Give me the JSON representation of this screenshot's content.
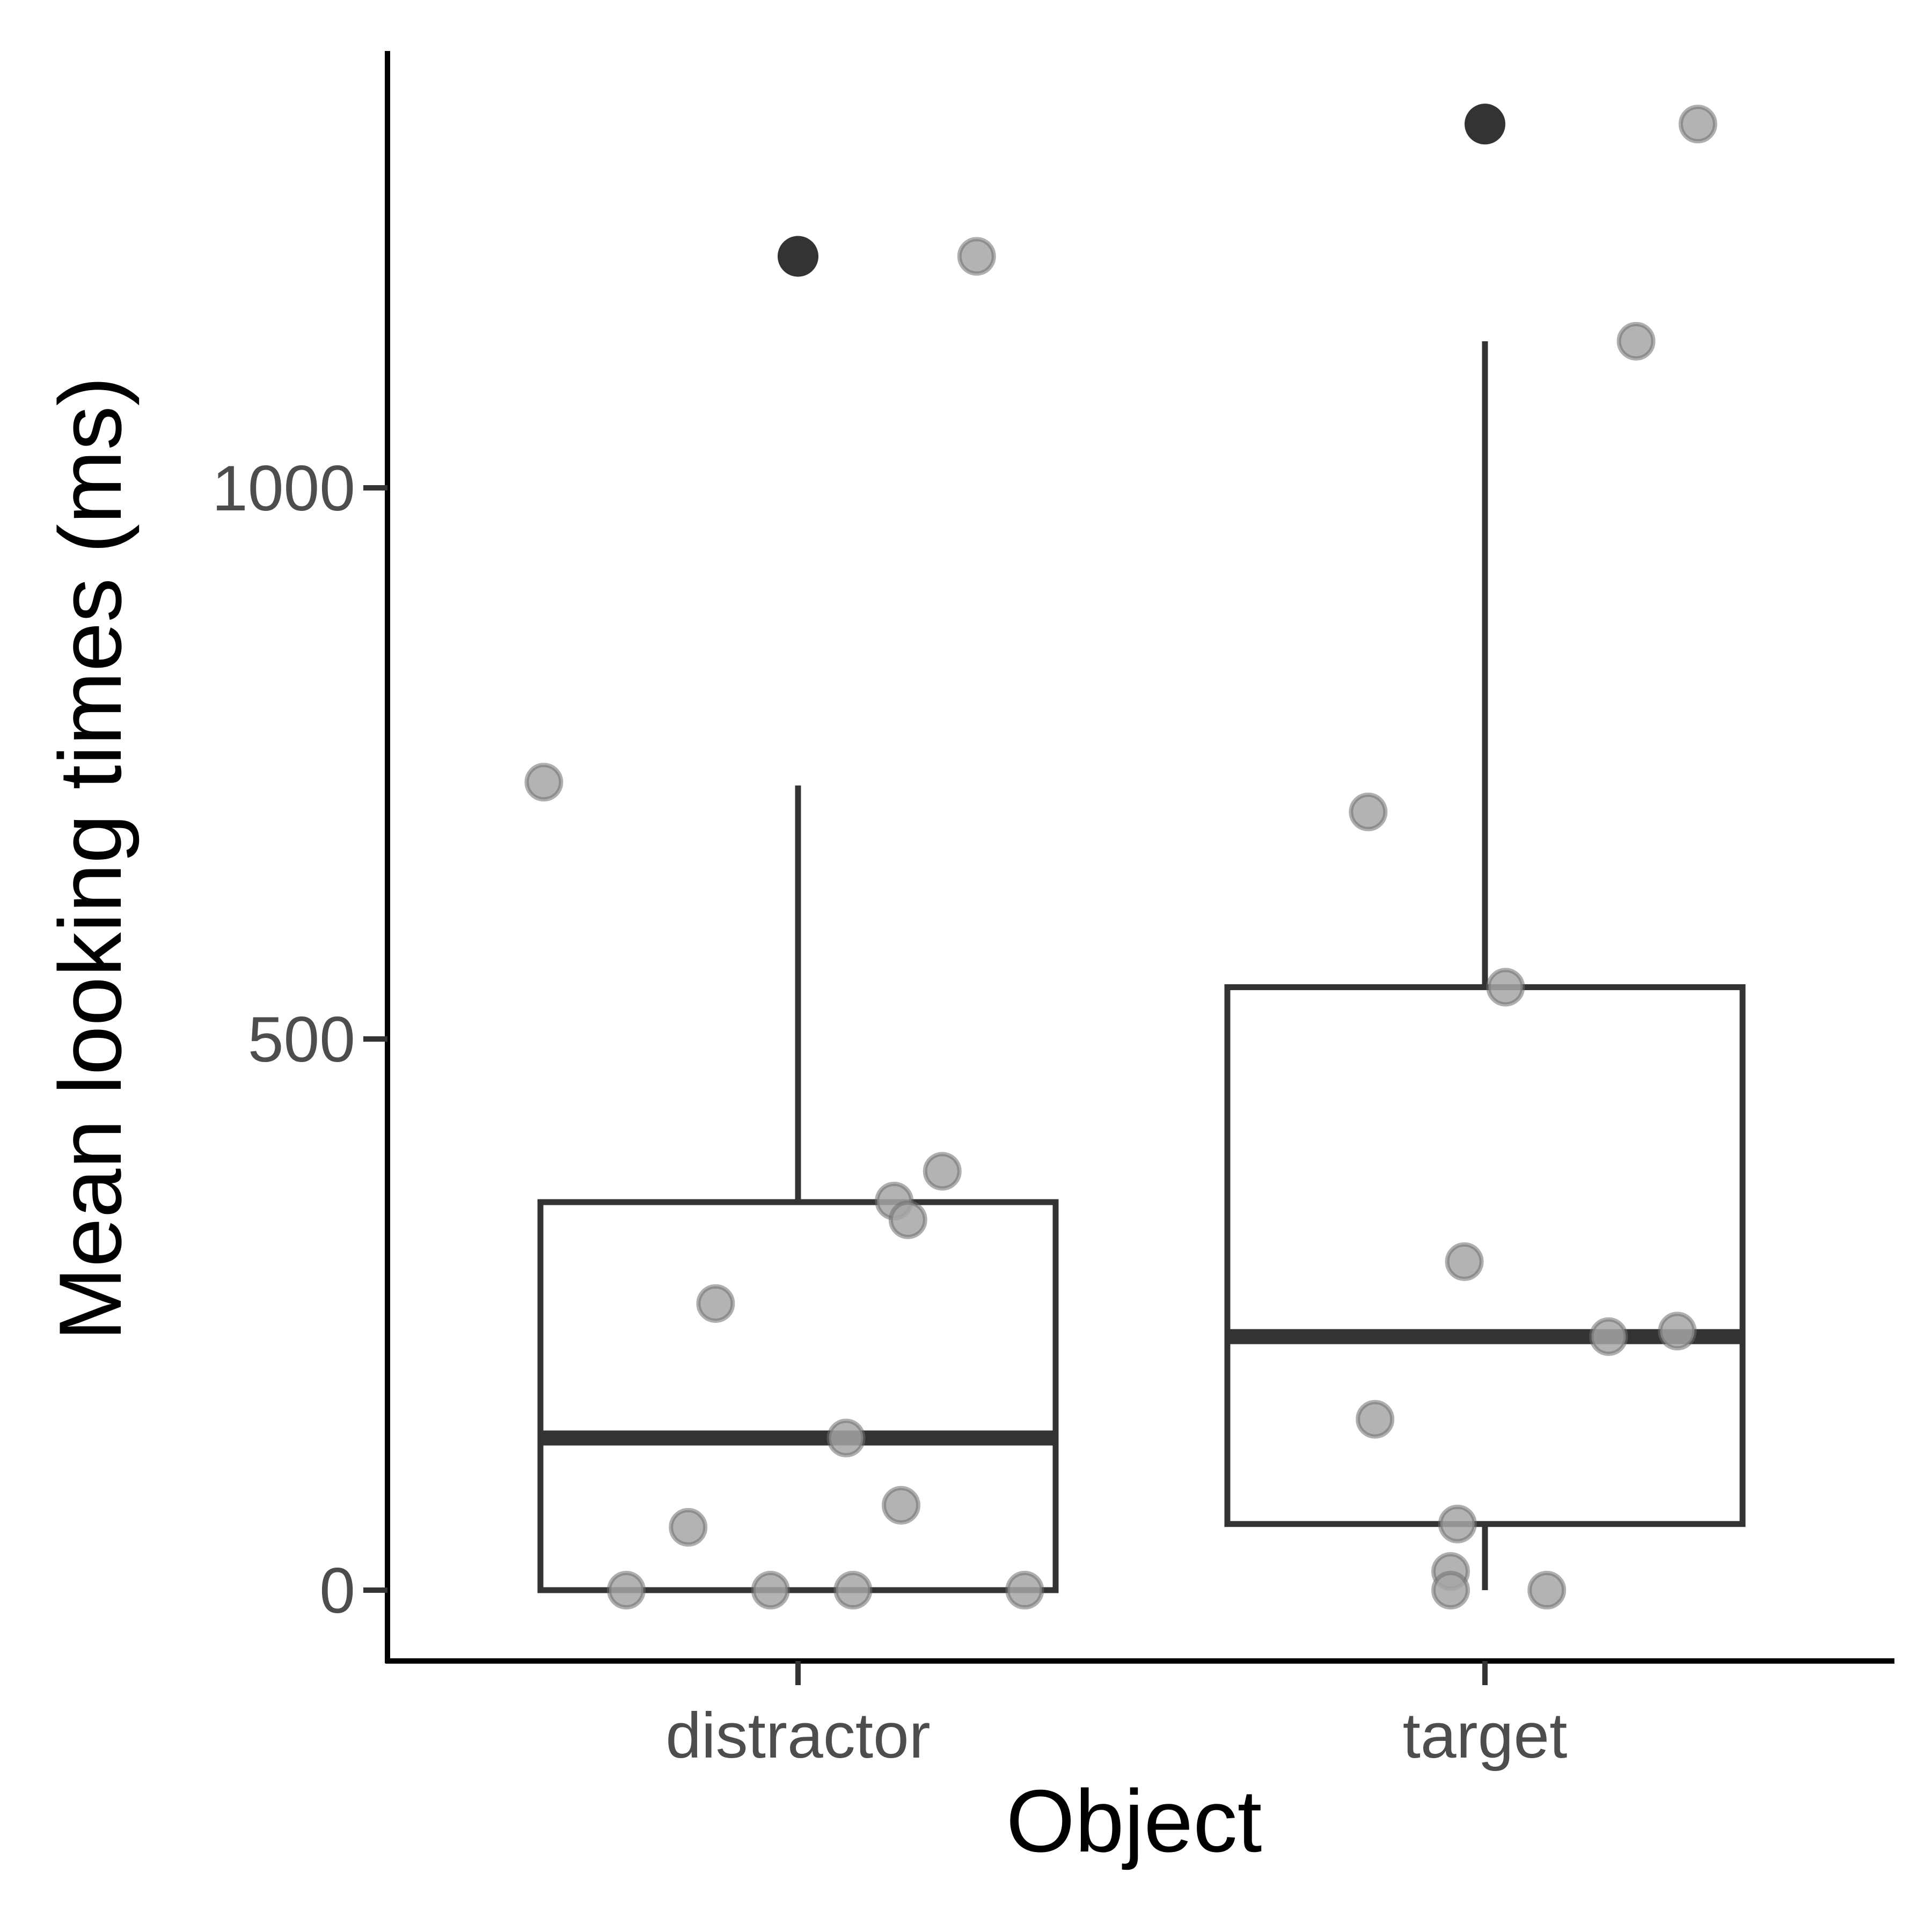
{
  "chart_data": {
    "type": "box",
    "title": "",
    "xlabel": "Object",
    "ylabel": "Mean looking times (ms)",
    "categories": [
      "distractor",
      "target"
    ],
    "ylim": [
      -65,
      1400
    ],
    "yticks": [
      0,
      500,
      1000
    ],
    "grid": false,
    "legend": "none",
    "boxes": [
      {
        "category": "distractor",
        "lower_whisker": 0,
        "q1": 0,
        "median": 138,
        "q3": 352,
        "upper_whisker": 730,
        "outliers": [
          1210
        ]
      },
      {
        "category": "target",
        "lower_whisker": 0,
        "q1": 60,
        "median": 230,
        "q3": 547,
        "upper_whisker": 1133,
        "outliers": [
          1330
        ]
      }
    ],
    "points": [
      {
        "category": "distractor",
        "offset": -0.37,
        "value": 733
      },
      {
        "category": "distractor",
        "offset": 0.26,
        "value": 1210
      },
      {
        "category": "distractor",
        "offset": 0.21,
        "value": 380
      },
      {
        "category": "distractor",
        "offset": 0.14,
        "value": 353
      },
      {
        "category": "distractor",
        "offset": 0.16,
        "value": 336
      },
      {
        "category": "distractor",
        "offset": -0.12,
        "value": 260
      },
      {
        "category": "distractor",
        "offset": 0.07,
        "value": 138
      },
      {
        "category": "distractor",
        "offset": 0.15,
        "value": 77
      },
      {
        "category": "distractor",
        "offset": -0.16,
        "value": 57
      },
      {
        "category": "distractor",
        "offset": -0.25,
        "value": 0
      },
      {
        "category": "distractor",
        "offset": -0.04,
        "value": 0
      },
      {
        "category": "distractor",
        "offset": 0.08,
        "value": 0
      },
      {
        "category": "distractor",
        "offset": 0.33,
        "value": 0
      },
      {
        "category": "target",
        "offset": 0.31,
        "value": 1330
      },
      {
        "category": "target",
        "offset": 0.22,
        "value": 1133
      },
      {
        "category": "target",
        "offset": -0.17,
        "value": 706
      },
      {
        "category": "target",
        "offset": 0.03,
        "value": 547
      },
      {
        "category": "target",
        "offset": -0.03,
        "value": 298
      },
      {
        "category": "target",
        "offset": 0.28,
        "value": 235
      },
      {
        "category": "target",
        "offset": 0.18,
        "value": 230
      },
      {
        "category": "target",
        "offset": -0.16,
        "value": 155
      },
      {
        "category": "target",
        "offset": -0.04,
        "value": 60
      },
      {
        "category": "target",
        "offset": -0.05,
        "value": 17
      },
      {
        "category": "target",
        "offset": -0.05,
        "value": 0
      },
      {
        "category": "target",
        "offset": 0.09,
        "value": 0
      }
    ],
    "colors": {
      "box_stroke": "#333333",
      "outlier": "#333333",
      "point_fill": "#a6a6a6",
      "point_stroke": "#6e6e6e",
      "axis": "#000000",
      "tick_label": "#4d4d4d"
    }
  }
}
